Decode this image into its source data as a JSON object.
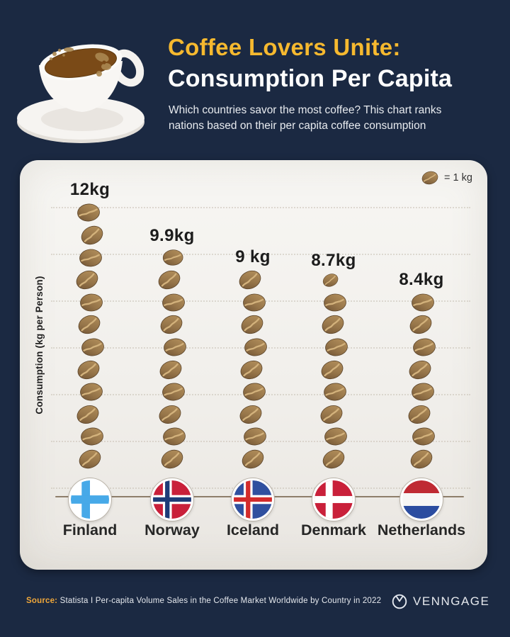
{
  "header": {
    "title_line1": "Coffee Lovers Unite:",
    "title_line2": "Consumption Per Capita",
    "subtitle_line1": "Which countries savor the most coffee? This chart ranks",
    "subtitle_line2": "nations based on their per capita coffee consumption"
  },
  "legend": {
    "label": "= 1 kg"
  },
  "chart_data": {
    "type": "bar",
    "subtype": "pictogram",
    "title": "Coffee Lovers Unite: Consumption Per Capita",
    "ylabel": "Consumption (kg per Person)",
    "icon": "coffee-bean",
    "icon_value_kg": 1,
    "categories": [
      "Finland",
      "Norway",
      "Iceland",
      "Denmark",
      "Netherlands"
    ],
    "values": [
      12,
      9.9,
      9,
      8.7,
      8.4
    ],
    "value_labels": [
      "12kg",
      "9.9kg",
      "9 kg",
      "8.7kg",
      "8.4kg"
    ],
    "flag_icons": [
      "finland-flag",
      "norway-flag",
      "iceland-flag",
      "denmark-flag",
      "netherlands-flag"
    ],
    "ylim": [
      0,
      12
    ],
    "grid": "dotted-horizontal"
  },
  "footer": {
    "source_label": "Source:",
    "source_text": "Statista I Per-capita Volume Sales in the Coffee Market Worldwide by Country in 2022",
    "brand": "VENNGAGE"
  },
  "colors": {
    "background": "#1b2942",
    "card": "#f2f0ec",
    "accent_yellow": "#f6b92f",
    "bean": "#97764a",
    "axis_line": "#8e7e6b"
  }
}
